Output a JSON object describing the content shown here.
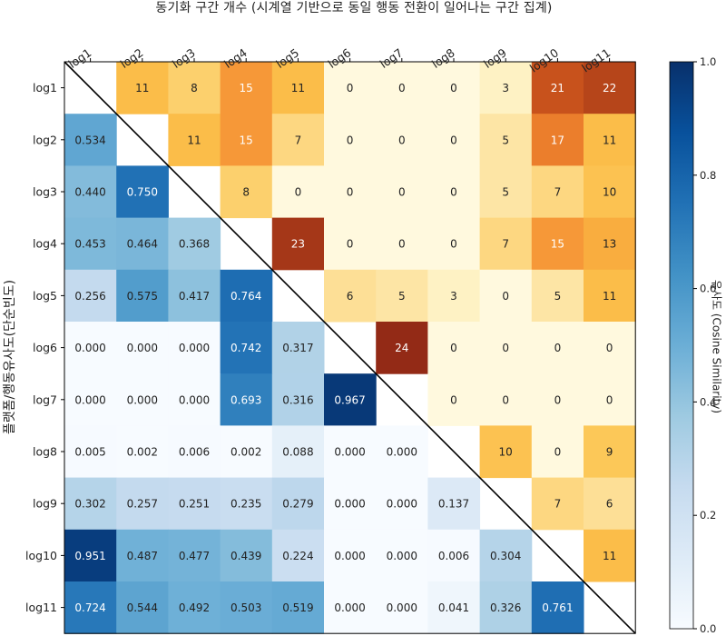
{
  "chart_data": {
    "type": "heatmap",
    "title": "동기화 구간 개수 (시계열 기반으로 동일 행동 전환이 일어나는 구간 집계)",
    "ylabel": "플랫폼/행동유사도(단순빈도)",
    "colorbar_label": "유사도 (Cosine Similarity)",
    "colorbar_range": [
      0.0,
      1.0
    ],
    "colorbar_ticks": [
      "0.0",
      "0.2",
      "0.4",
      "0.6",
      "0.8",
      "1.0"
    ],
    "row_labels": [
      "log1",
      "log2",
      "log3",
      "log4",
      "log5",
      "log6",
      "log7",
      "log8",
      "log9",
      "log10",
      "log11"
    ],
    "col_labels": [
      "log1",
      "log2",
      "log3",
      "log4",
      "log5",
      "log6",
      "log7",
      "log8",
      "log9",
      "log10",
      "log11"
    ],
    "lower_similarity": [
      [],
      [
        0.534
      ],
      [
        0.44,
        0.75
      ],
      [
        0.453,
        0.464,
        0.368
      ],
      [
        0.256,
        0.575,
        0.417,
        0.764
      ],
      [
        0.0,
        0.0,
        0.0,
        0.742,
        0.317
      ],
      [
        0.0,
        0.0,
        0.0,
        0.693,
        0.316,
        0.967
      ],
      [
        0.005,
        0.002,
        0.006,
        0.002,
        0.088,
        0.0,
        0.0
      ],
      [
        0.302,
        0.257,
        0.251,
        0.235,
        0.279,
        0.0,
        0.0,
        0.137
      ],
      [
        0.951,
        0.487,
        0.477,
        0.439,
        0.224,
        0.0,
        0.0,
        0.006,
        0.304
      ],
      [
        0.724,
        0.544,
        0.492,
        0.503,
        0.519,
        0.0,
        0.0,
        0.041,
        0.326,
        0.761
      ]
    ],
    "upper_sync_counts": [
      [
        11,
        8,
        15,
        11,
        0,
        0,
        0,
        3,
        21,
        22
      ],
      [
        11,
        15,
        7,
        0,
        0,
        0,
        5,
        17,
        11
      ],
      [
        8,
        0,
        0,
        0,
        0,
        5,
        7,
        10
      ],
      [
        23,
        0,
        0,
        0,
        7,
        15,
        13
      ],
      [
        6,
        5,
        3,
        0,
        5,
        11
      ],
      [
        24,
        0,
        0,
        0,
        0
      ],
      [
        0,
        0,
        0,
        0
      ],
      [
        10,
        0,
        9
      ],
      [
        7,
        6
      ],
      [
        11
      ],
      []
    ],
    "upper_color_max": 24
  }
}
